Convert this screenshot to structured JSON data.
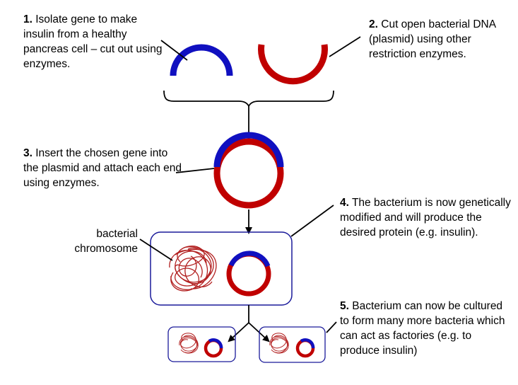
{
  "steps": [
    {
      "num": "1.",
      "text": "Isolate gene to make insulin from a healthy pancreas cell – cut out using enzymes."
    },
    {
      "num": "2.",
      "text": "Cut open bacterial DNA (plasmid) using other restriction enzymes."
    },
    {
      "num": "3.",
      "text": "Insert the chosen gene into the plasmid and attach each end using enzymes."
    },
    {
      "num": "4.",
      "text": "The bacterium is now genetically modified and will produce the desired protein (e.g. insulin)."
    },
    {
      "num": "5.",
      "text": "Bacterium can now be cultured to form many more bacteria which can act as factories (e.g. to produce insulin)"
    }
  ],
  "labels": {
    "chromosome_line1": "bacterial",
    "chromosome_line2": "chromosome"
  },
  "colors": {
    "gene": "#1010c0",
    "plasmid": "#c00000",
    "cell_border": "#1a1a9a",
    "arrow": "#000000"
  }
}
